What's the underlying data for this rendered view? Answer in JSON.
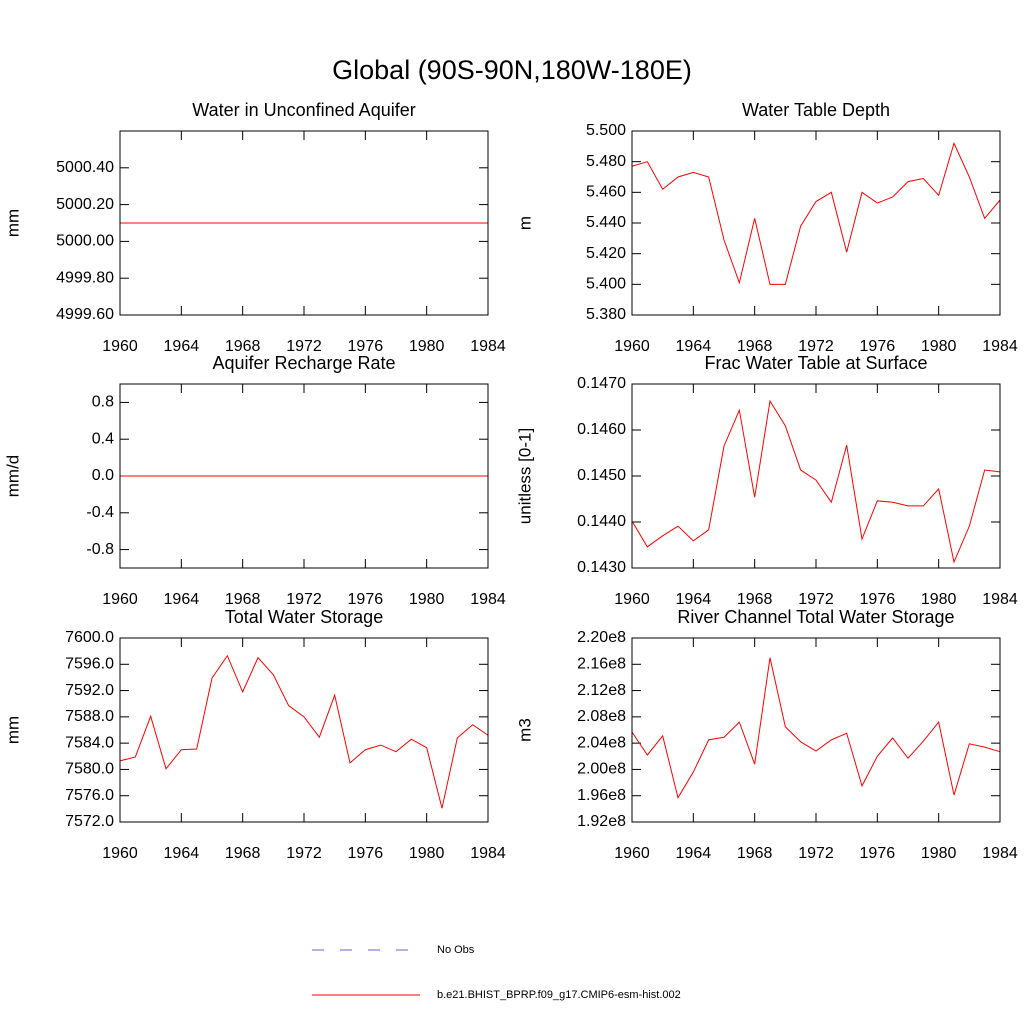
{
  "title": "Global (90S-90N,180W-180E)",
  "chart_data": [
    {
      "type": "line",
      "title": "Water in Unconfined Aquifer",
      "y_label": "mm",
      "color": "#ff0000",
      "x": [
        1960,
        1961,
        1962,
        1963,
        1964,
        1965,
        1966,
        1967,
        1968,
        1969,
        1970,
        1971,
        1972,
        1973,
        1974,
        1975,
        1976,
        1977,
        1978,
        1979,
        1980,
        1981,
        1982,
        1983,
        1984
      ],
      "values": [
        5000.1,
        5000.1,
        5000.1,
        5000.1,
        5000.1,
        5000.1,
        5000.1,
        5000.1,
        5000.1,
        5000.1,
        5000.1,
        5000.1,
        5000.1,
        5000.1,
        5000.1,
        5000.1,
        5000.1,
        5000.1,
        5000.1,
        5000.1,
        5000.1,
        5000.1,
        5000.1,
        5000.1,
        5000.1
      ],
      "xlim": [
        1960,
        1984
      ],
      "xticks": [
        1960,
        1964,
        1968,
        1972,
        1976,
        1980,
        1984
      ],
      "ylim": [
        4999.6,
        5000.6
      ],
      "yticks": [
        {
          "value": 4999.6,
          "label": "4999.60"
        },
        {
          "value": 4999.8,
          "label": "4999.80"
        },
        {
          "value": 5000.0,
          "label": "5000.00"
        },
        {
          "value": 5000.2,
          "label": "5000.20"
        },
        {
          "value": 5000.4,
          "label": "5000.40"
        }
      ]
    },
    {
      "type": "line",
      "title": "Water Table Depth",
      "y_label": "m",
      "color": "#ff0000",
      "x": [
        1960,
        1961,
        1962,
        1963,
        1964,
        1965,
        1966,
        1967,
        1968,
        1969,
        1970,
        1971,
        1972,
        1973,
        1974,
        1975,
        1976,
        1977,
        1978,
        1979,
        1980,
        1981,
        1982,
        1983,
        1984
      ],
      "values": [
        5.477,
        5.48,
        5.462,
        5.47,
        5.473,
        5.47,
        5.429,
        5.401,
        5.443,
        5.4,
        5.4,
        5.438,
        5.454,
        5.46,
        5.421,
        5.46,
        5.453,
        5.457,
        5.467,
        5.469,
        5.458,
        5.492,
        5.47,
        5.443,
        5.455
      ],
      "xlim": [
        1960,
        1984
      ],
      "xticks": [
        1960,
        1964,
        1968,
        1972,
        1976,
        1980,
        1984
      ],
      "ylim": [
        5.38,
        5.5
      ],
      "yticks": [
        {
          "value": 5.38,
          "label": "5.380"
        },
        {
          "value": 5.4,
          "label": "5.400"
        },
        {
          "value": 5.42,
          "label": "5.420"
        },
        {
          "value": 5.44,
          "label": "5.440"
        },
        {
          "value": 5.46,
          "label": "5.460"
        },
        {
          "value": 5.48,
          "label": "5.480"
        },
        {
          "value": 5.5,
          "label": "5.500"
        }
      ]
    },
    {
      "type": "line",
      "title": "Aquifer Recharge Rate",
      "y_label": "mm/d",
      "color": "#ff0000",
      "x": [
        1960,
        1961,
        1962,
        1963,
        1964,
        1965,
        1966,
        1967,
        1968,
        1969,
        1970,
        1971,
        1972,
        1973,
        1974,
        1975,
        1976,
        1977,
        1978,
        1979,
        1980,
        1981,
        1982,
        1983,
        1984
      ],
      "values": [
        0,
        0,
        0,
        0,
        0,
        0,
        0,
        0,
        0,
        0,
        0,
        0,
        0,
        0,
        0,
        0,
        0,
        0,
        0,
        0,
        0,
        0,
        0,
        0,
        0
      ],
      "xlim": [
        1960,
        1984
      ],
      "xticks": [
        1960,
        1964,
        1968,
        1972,
        1976,
        1980,
        1984
      ],
      "ylim": [
        -1,
        1
      ],
      "yticks": [
        -0.8,
        -0.4,
        {
          "value": 0,
          "label": "0.0"
        },
        0.4,
        0.8
      ]
    },
    {
      "type": "line",
      "title": "Frac Water Table at Surface",
      "y_label": "unitless [0-1]",
      "color": "#ff0000",
      "x": [
        1960,
        1961,
        1962,
        1963,
        1964,
        1965,
        1966,
        1967,
        1968,
        1969,
        1970,
        1971,
        1972,
        1973,
        1974,
        1975,
        1976,
        1977,
        1978,
        1979,
        1980,
        1981,
        1982,
        1983,
        1984
      ],
      "values": [
        0.14402,
        0.14346,
        0.1437,
        0.14391,
        0.14359,
        0.14383,
        0.14565,
        0.14643,
        0.14454,
        0.14663,
        0.14609,
        0.14513,
        0.14491,
        0.14443,
        0.14567,
        0.14363,
        0.14446,
        0.14443,
        0.14435,
        0.14435,
        0.14472,
        0.14313,
        0.14391,
        0.14513,
        0.14509
      ],
      "xlim": [
        1960,
        1984
      ],
      "xticks": [
        1960,
        1964,
        1968,
        1972,
        1976,
        1980,
        1984
      ],
      "ylim": [
        0.143,
        0.147
      ],
      "yticks": [
        {
          "value": 0.143,
          "label": "0.1430"
        },
        {
          "value": 0.144,
          "label": "0.1440"
        },
        {
          "value": 0.145,
          "label": "0.1450"
        },
        {
          "value": 0.146,
          "label": "0.1460"
        },
        {
          "value": 0.147,
          "label": "0.1470"
        }
      ]
    },
    {
      "type": "line",
      "title": "Total Water Storage",
      "y_label": "mm",
      "color": "#ff0000",
      "x": [
        1960,
        1961,
        1962,
        1963,
        1964,
        1965,
        1966,
        1967,
        1968,
        1969,
        1970,
        1971,
        1972,
        1973,
        1974,
        1975,
        1976,
        1977,
        1978,
        1979,
        1980,
        1981,
        1982,
        1983,
        1984
      ],
      "values": [
        7581.3,
        7581.9,
        7588.1,
        7580.1,
        7583.0,
        7583.1,
        7593.9,
        7597.3,
        7591.8,
        7597.0,
        7594.4,
        7589.7,
        7588.0,
        7584.9,
        7591.3,
        7581.0,
        7583.0,
        7583.7,
        7582.7,
        7584.6,
        7583.3,
        7574.1,
        7584.8,
        7586.8,
        7585.2
      ],
      "xlim": [
        1960,
        1984
      ],
      "xticks": [
        1960,
        1964,
        1968,
        1972,
        1976,
        1980,
        1984
      ],
      "ylim": [
        7572,
        7600
      ],
      "yticks": [
        {
          "value": 7572,
          "label": "7572.0"
        },
        {
          "value": 7576,
          "label": "7576.0"
        },
        {
          "value": 7580,
          "label": "7580.0"
        },
        {
          "value": 7584,
          "label": "7584.0"
        },
        {
          "value": 7588,
          "label": "7588.0"
        },
        {
          "value": 7592,
          "label": "7592.0"
        },
        {
          "value": 7596,
          "label": "7596.0"
        },
        {
          "value": 7600,
          "label": "7600.0"
        }
      ]
    },
    {
      "type": "line",
      "title": "River Channel Total Water Storage",
      "y_label": "m3",
      "color": "#ff0000",
      "x": [
        1960,
        1961,
        1962,
        1963,
        1964,
        1965,
        1966,
        1967,
        1968,
        1969,
        1970,
        1971,
        1972,
        1973,
        1974,
        1975,
        1976,
        1977,
        1978,
        1979,
        1980,
        1981,
        1982,
        1983,
        1984
      ],
      "values": [
        205700000,
        202200000,
        205100000,
        195700000,
        199600000,
        204500000,
        204900000,
        207200000,
        200800000,
        217000000,
        206500000,
        204200000,
        202800000,
        204500000,
        205500000,
        197500000,
        202000000,
        204800000,
        201700000,
        204300000,
        207200000,
        196100000,
        203900000,
        203400000,
        202700000
      ],
      "xlim": [
        1960,
        1984
      ],
      "xticks": [
        1960,
        1964,
        1968,
        1972,
        1976,
        1980,
        1984
      ],
      "ylim": [
        192000000,
        220000000
      ],
      "yticks": [
        {
          "value": 192000000,
          "label": "1.92e8"
        },
        {
          "value": 196000000,
          "label": "1.96e8"
        },
        {
          "value": 200000000,
          "label": "2.00e8"
        },
        {
          "value": 204000000,
          "label": "2.04e8"
        },
        {
          "value": 208000000,
          "label": "2.08e8"
        },
        {
          "value": 212000000,
          "label": "2.12e8"
        },
        {
          "value": 216000000,
          "label": "2.16e8"
        },
        {
          "value": 220000000,
          "label": "2.20e8"
        }
      ]
    }
  ],
  "legend": [
    {
      "name": "No Obs",
      "color": "#6666cc",
      "style": "dashed"
    },
    {
      "name": "b.e21.BHIST_BPRP.f09_g17.CMIP6-esm-hist.002",
      "color": "#ff0000",
      "style": "solid"
    }
  ]
}
